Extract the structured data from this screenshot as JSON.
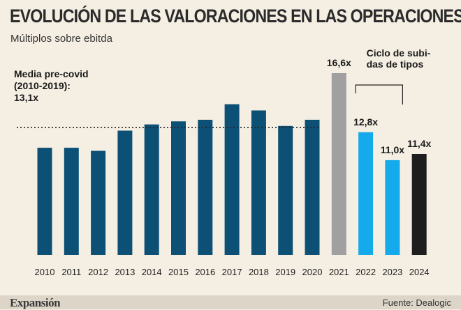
{
  "title": "EVOLUCIÓN DE LAS VALORACIONES EN LAS OPERACIONES",
  "subtitle": "Múltiplos sobre ebitda",
  "footer": {
    "brand": "Expansión",
    "source": "Fuente: Dealogic"
  },
  "colors": {
    "regular": "#0d5075",
    "highlight_2021": "#a0a0a0",
    "rate_hike": "#14aaeb",
    "latest": "#1e1e1e",
    "background": "#f5efe3"
  },
  "chart_data": {
    "type": "bar",
    "title": "EVOLUCIÓN DE LAS VALORACIONES EN LAS OPERACIONES",
    "subtitle": "Múltiplos sobre ebitda",
    "categories": [
      "2010",
      "2011",
      "2012",
      "2013",
      "2014",
      "2015",
      "2016",
      "2017",
      "2018",
      "2019",
      "2020",
      "2021",
      "2022",
      "2023",
      "2024"
    ],
    "values": [
      11.8,
      11.8,
      11.6,
      12.9,
      13.3,
      13.5,
      13.6,
      14.6,
      14.2,
      13.2,
      13.6,
      16.6,
      12.8,
      11.0,
      11.4
    ],
    "bar_colors": [
      "regular",
      "regular",
      "regular",
      "regular",
      "regular",
      "regular",
      "regular",
      "regular",
      "regular",
      "regular",
      "regular",
      "highlight_2021",
      "rate_hike",
      "rate_hike",
      "latest"
    ],
    "data_labels": [
      {
        "category": "2021",
        "text": "16,6x"
      },
      {
        "category": "2022",
        "text": "12,8x"
      },
      {
        "category": "2023",
        "text": "11,0x"
      },
      {
        "category": "2024",
        "text": "11,4x"
      }
    ],
    "reference_line": {
      "value": 13.1,
      "label_lines": [
        "Media pre-covid",
        "(2010-2019):",
        "13,1x"
      ],
      "style": "dotted"
    },
    "annotation": {
      "text_lines": [
        "Ciclo de subi-",
        "das de tipos"
      ],
      "span": [
        "2022",
        "2023"
      ]
    },
    "ylim": [
      4.9,
      16.6
    ],
    "xlabel": "",
    "ylabel": ""
  }
}
